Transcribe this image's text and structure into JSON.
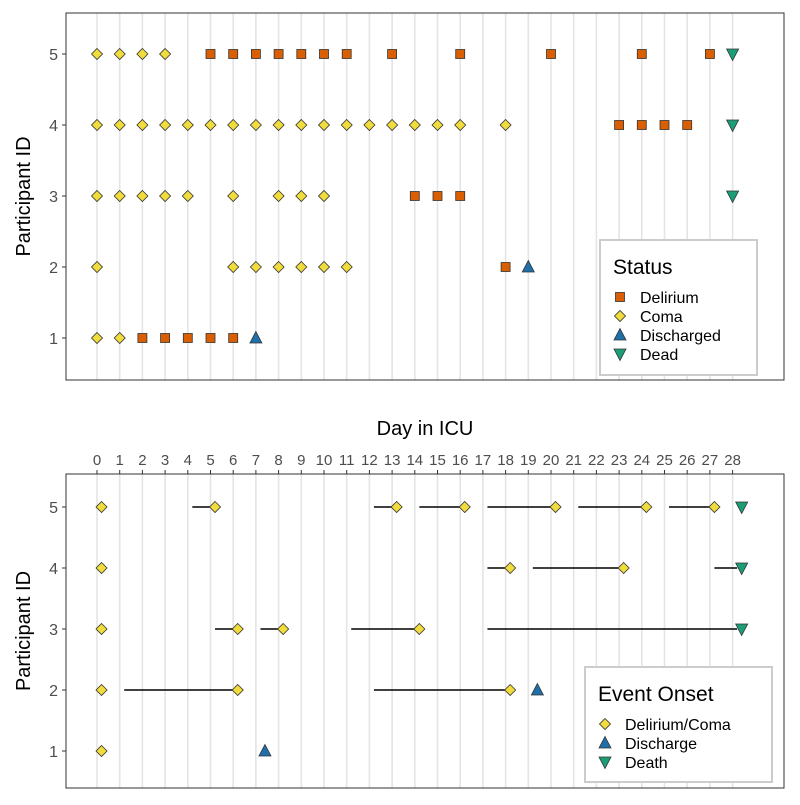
{
  "chart_data": [
    {
      "type": "scatter",
      "title": "",
      "xlabel": "",
      "ylabel": "Participant ID",
      "xlim": [
        -0.5,
        28.5
      ],
      "ylim": [
        0.4,
        5.6
      ],
      "x_ticks": [
        0,
        1,
        2,
        3,
        4,
        5,
        6,
        7,
        8,
        9,
        10,
        11,
        12,
        13,
        14,
        15,
        16,
        17,
        18,
        19,
        20,
        21,
        22,
        23,
        24,
        25,
        26,
        27,
        28
      ],
      "y_ticks": [
        1,
        2,
        3,
        4,
        5
      ],
      "grid": "vertical lines at each day",
      "legend": {
        "title": "Status",
        "placement": "bottom-right",
        "entries": [
          {
            "label": "Delirium",
            "shape": "square",
            "color": "#d95f02"
          },
          {
            "label": "Coma",
            "shape": "diamond",
            "color": "#f0dc3c"
          },
          {
            "label": "Discharged",
            "shape": "triangle-up",
            "color": "#1f6fa8"
          },
          {
            "label": "Dead",
            "shape": "triangle-down",
            "color": "#1b9e77"
          }
        ]
      },
      "series": [
        {
          "name": "Delirium",
          "points": [
            {
              "x": 2,
              "y": 1
            },
            {
              "x": 3,
              "y": 1
            },
            {
              "x": 4,
              "y": 1
            },
            {
              "x": 5,
              "y": 1
            },
            {
              "x": 6,
              "y": 1
            },
            {
              "x": 18,
              "y": 2
            },
            {
              "x": 14,
              "y": 3
            },
            {
              "x": 15,
              "y": 3
            },
            {
              "x": 16,
              "y": 3
            },
            {
              "x": 23,
              "y": 4
            },
            {
              "x": 24,
              "y": 4
            },
            {
              "x": 25,
              "y": 4
            },
            {
              "x": 26,
              "y": 4
            },
            {
              "x": 5,
              "y": 5
            },
            {
              "x": 6,
              "y": 5
            },
            {
              "x": 7,
              "y": 5
            },
            {
              "x": 8,
              "y": 5
            },
            {
              "x": 9,
              "y": 5
            },
            {
              "x": 10,
              "y": 5
            },
            {
              "x": 11,
              "y": 5
            },
            {
              "x": 13,
              "y": 5
            },
            {
              "x": 16,
              "y": 5
            },
            {
              "x": 20,
              "y": 5
            },
            {
              "x": 24,
              "y": 5
            },
            {
              "x": 27,
              "y": 5
            }
          ]
        },
        {
          "name": "Coma",
          "points": [
            {
              "x": 0,
              "y": 1
            },
            {
              "x": 1,
              "y": 1
            },
            {
              "x": 0,
              "y": 2
            },
            {
              "x": 6,
              "y": 2
            },
            {
              "x": 7,
              "y": 2
            },
            {
              "x": 8,
              "y": 2
            },
            {
              "x": 9,
              "y": 2
            },
            {
              "x": 10,
              "y": 2
            },
            {
              "x": 11,
              "y": 2
            },
            {
              "x": 0,
              "y": 3
            },
            {
              "x": 1,
              "y": 3
            },
            {
              "x": 2,
              "y": 3
            },
            {
              "x": 3,
              "y": 3
            },
            {
              "x": 4,
              "y": 3
            },
            {
              "x": 6,
              "y": 3
            },
            {
              "x": 8,
              "y": 3
            },
            {
              "x": 9,
              "y": 3
            },
            {
              "x": 10,
              "y": 3
            },
            {
              "x": 0,
              "y": 4
            },
            {
              "x": 1,
              "y": 4
            },
            {
              "x": 2,
              "y": 4
            },
            {
              "x": 3,
              "y": 4
            },
            {
              "x": 4,
              "y": 4
            },
            {
              "x": 5,
              "y": 4
            },
            {
              "x": 6,
              "y": 4
            },
            {
              "x": 7,
              "y": 4
            },
            {
              "x": 8,
              "y": 4
            },
            {
              "x": 9,
              "y": 4
            },
            {
              "x": 10,
              "y": 4
            },
            {
              "x": 11,
              "y": 4
            },
            {
              "x": 12,
              "y": 4
            },
            {
              "x": 13,
              "y": 4
            },
            {
              "x": 14,
              "y": 4
            },
            {
              "x": 15,
              "y": 4
            },
            {
              "x": 16,
              "y": 4
            },
            {
              "x": 18,
              "y": 4
            },
            {
              "x": 0,
              "y": 5
            },
            {
              "x": 1,
              "y": 5
            },
            {
              "x": 2,
              "y": 5
            },
            {
              "x": 3,
              "y": 5
            }
          ]
        },
        {
          "name": "Discharged",
          "points": [
            {
              "x": 7,
              "y": 1
            },
            {
              "x": 19,
              "y": 2
            }
          ]
        },
        {
          "name": "Dead",
          "points": [
            {
              "x": 28,
              "y": 3
            },
            {
              "x": 28,
              "y": 4
            },
            {
              "x": 28,
              "y": 5
            }
          ]
        }
      ]
    },
    {
      "type": "scatter",
      "title": "",
      "xlabel": "Day in ICU",
      "xaxis_position": "top",
      "ylabel": "Participant ID",
      "xlim": [
        -0.5,
        29.5
      ],
      "ylim": [
        0.4,
        5.6
      ],
      "x_ticks": [
        0,
        1,
        2,
        3,
        4,
        5,
        6,
        7,
        8,
        9,
        10,
        11,
        12,
        13,
        14,
        15,
        16,
        17,
        18,
        19,
        20,
        21,
        22,
        23,
        24,
        25,
        26,
        27,
        28
      ],
      "y_ticks": [
        1,
        2,
        3,
        4,
        5
      ],
      "grid": "vertical lines at each day",
      "legend": {
        "title": "Event Onset",
        "placement": "bottom-right",
        "entries": [
          {
            "label": "Delirium/Coma",
            "shape": "diamond",
            "color": "#f0dc3c"
          },
          {
            "label": "Discharge",
            "shape": "triangle-up",
            "color": "#1f6fa8"
          },
          {
            "label": "Death",
            "shape": "triangle-down",
            "color": "#1b9e77"
          }
        ]
      },
      "segments": [
        {
          "y": 2,
          "x0": 1.2,
          "x1": 6.2
        },
        {
          "y": 2,
          "x0": 12.2,
          "x1": 18.2
        },
        {
          "y": 3,
          "x0": 5.2,
          "x1": 6.2
        },
        {
          "y": 3,
          "x0": 7.2,
          "x1": 8.2
        },
        {
          "y": 3,
          "x0": 11.2,
          "x1": 14.2
        },
        {
          "y": 3,
          "x0": 17.2,
          "x1": 28.2
        },
        {
          "y": 4,
          "x0": 17.2,
          "x1": 18.2
        },
        {
          "y": 4,
          "x0": 19.2,
          "x1": 23.2
        },
        {
          "y": 4,
          "x0": 27.2,
          "x1": 28.2
        },
        {
          "y": 5,
          "x0": 4.2,
          "x1": 5.2
        },
        {
          "y": 5,
          "x0": 12.2,
          "x1": 13.2
        },
        {
          "y": 5,
          "x0": 14.2,
          "x1": 16.2
        },
        {
          "y": 5,
          "x0": 17.2,
          "x1": 20.2
        },
        {
          "y": 5,
          "x0": 21.2,
          "x1": 24.2
        },
        {
          "y": 5,
          "x0": 25.2,
          "x1": 27.2
        },
        {
          "y": 1,
          "x0": 0.0,
          "x1": 0.2
        },
        {
          "y": 2,
          "x0": 0.0,
          "x1": 0.2
        },
        {
          "y": 3,
          "x0": 0.0,
          "x1": 0.2
        },
        {
          "y": 4,
          "x0": 0.0,
          "x1": 0.2
        },
        {
          "y": 5,
          "x0": 0.0,
          "x1": 0.2
        }
      ],
      "series": [
        {
          "name": "Delirium/Coma",
          "points": [
            {
              "x": 0.2,
              "y": 1
            },
            {
              "x": 0.2,
              "y": 2
            },
            {
              "x": 6.2,
              "y": 2
            },
            {
              "x": 18.2,
              "y": 2
            },
            {
              "x": 0.2,
              "y": 3
            },
            {
              "x": 6.2,
              "y": 3
            },
            {
              "x": 8.2,
              "y": 3
            },
            {
              "x": 14.2,
              "y": 3
            },
            {
              "x": 0.2,
              "y": 4
            },
            {
              "x": 18.2,
              "y": 4
            },
            {
              "x": 23.2,
              "y": 4
            },
            {
              "x": 0.2,
              "y": 5
            },
            {
              "x": 5.2,
              "y": 5
            },
            {
              "x": 13.2,
              "y": 5
            },
            {
              "x": 16.2,
              "y": 5
            },
            {
              "x": 20.2,
              "y": 5
            },
            {
              "x": 24.2,
              "y": 5
            },
            {
              "x": 27.2,
              "y": 5
            }
          ]
        },
        {
          "name": "Discharge",
          "points": [
            {
              "x": 7.4,
              "y": 1
            },
            {
              "x": 19.4,
              "y": 2
            }
          ]
        },
        {
          "name": "Death",
          "points": [
            {
              "x": 28.4,
              "y": 3
            },
            {
              "x": 28.4,
              "y": 4
            },
            {
              "x": 28.4,
              "y": 5
            }
          ]
        }
      ]
    }
  ]
}
